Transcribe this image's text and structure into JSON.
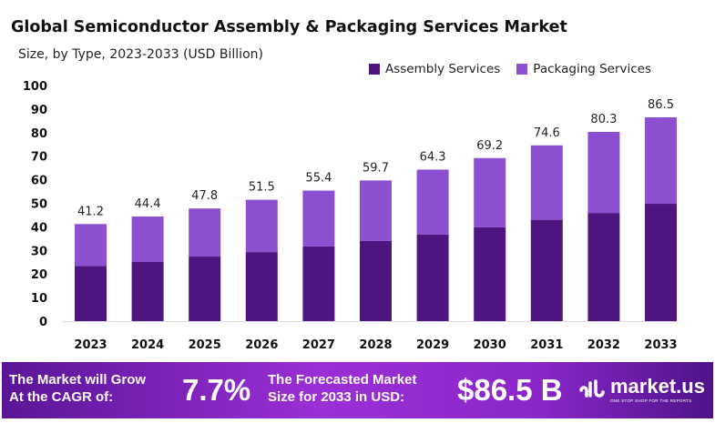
{
  "chart_data": {
    "type": "bar",
    "stacked": true,
    "title": "Global Semiconductor Assembly & Packaging Services Market",
    "subtitle": "Size, by Type, 2023-2033 (USD Billion)",
    "categories": [
      "2023",
      "2024",
      "2025",
      "2026",
      "2027",
      "2028",
      "2029",
      "2030",
      "2031",
      "2032",
      "2033"
    ],
    "series": [
      {
        "name": "Assembly Services",
        "color": "#4e1580",
        "values": [
          23.4,
          25.1,
          27.4,
          29.3,
          31.7,
          34.0,
          36.8,
          39.8,
          43.0,
          45.9,
          49.8
        ]
      },
      {
        "name": "Packaging Services",
        "color": "#8b4fd0",
        "values": [
          17.8,
          19.3,
          20.4,
          22.2,
          23.7,
          25.7,
          27.5,
          29.4,
          31.6,
          34.4,
          36.7
        ]
      }
    ],
    "totals": [
      "41.2",
      "44.4",
      "47.8",
      "51.5",
      "55.4",
      "59.7",
      "64.3",
      "69.2",
      "74.6",
      "80.3",
      "86.5"
    ],
    "ylim": [
      0,
      100
    ],
    "yticks": [
      "0",
      "10",
      "20",
      "30",
      "40",
      "50",
      "60",
      "70",
      "80",
      "90",
      "100"
    ],
    "grid": false,
    "legend_position": "top-right"
  },
  "footer": {
    "cagr_label_1": "The Market will Grow",
    "cagr_label_2": "At the CAGR of:",
    "cagr_value": "7.7%",
    "size_label_1": "The Forecasted Market",
    "size_label_2": "Size for 2033 in USD:",
    "size_value": "$86.5 B",
    "brand": "market.us",
    "brand_tagline": "ONE STOP SHOP FOR THE REPORTS"
  }
}
